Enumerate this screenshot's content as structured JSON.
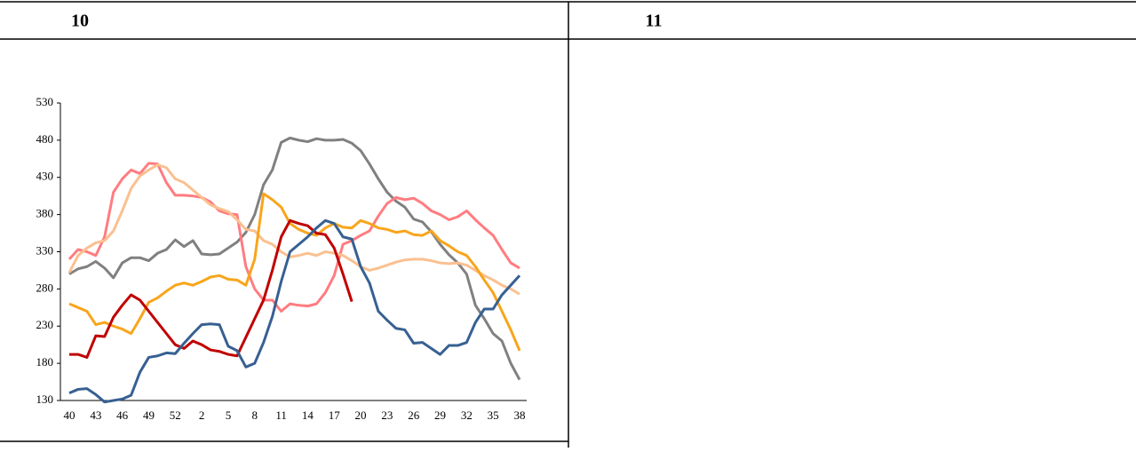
{
  "table": {
    "headers": [
      "10",
      "11"
    ]
  },
  "chart_data": {
    "type": "line",
    "categories": [
      "40",
      null,
      null,
      "43",
      null,
      null,
      "46",
      null,
      null,
      "49",
      null,
      null,
      "52",
      null,
      null,
      "2",
      null,
      null,
      "5",
      null,
      null,
      "8",
      null,
      null,
      "11",
      null,
      null,
      "14",
      null,
      null,
      "17",
      null,
      null,
      "20",
      null,
      null,
      "23",
      null,
      null,
      "26",
      null,
      null,
      "29",
      null,
      null,
      "32",
      null,
      null,
      "35",
      null,
      null,
      "38"
    ],
    "ylim": [
      130,
      530
    ],
    "yticks": [
      130,
      180,
      230,
      280,
      330,
      380,
      430,
      480,
      530
    ],
    "series": [
      {
        "color": "#808080",
        "values": [
          300,
          307,
          310,
          317,
          308,
          295,
          315,
          322,
          322,
          318,
          328,
          333,
          346,
          337,
          345,
          327,
          326,
          327,
          335,
          343,
          356,
          380,
          420,
          440,
          477,
          483,
          480,
          478,
          482,
          480,
          480,
          481,
          476,
          466,
          448,
          428,
          410,
          398,
          390,
          374,
          370,
          357,
          340,
          326,
          315,
          300,
          258,
          240,
          220,
          210,
          180,
          158
        ]
      },
      {
        "color": "#ff7c80",
        "values": [
          320,
          333,
          330,
          325,
          350,
          410,
          428,
          440,
          435,
          449,
          448,
          423,
          406,
          406,
          405,
          403,
          397,
          385,
          381,
          380,
          310,
          280,
          265,
          265,
          250,
          260,
          258,
          257,
          260,
          275,
          298,
          340,
          345,
          352,
          358,
          378,
          395,
          403,
          400,
          402,
          395,
          385,
          380,
          373,
          377,
          385,
          373,
          362,
          352,
          333,
          315,
          308
        ]
      },
      {
        "color": "#fac090",
        "values": [
          302,
          325,
          335,
          342,
          345,
          358,
          385,
          415,
          432,
          440,
          447,
          443,
          428,
          423,
          413,
          403,
          393,
          388,
          384,
          373,
          360,
          358,
          345,
          340,
          330,
          323,
          325,
          328,
          325,
          330,
          328,
          325,
          318,
          310,
          305,
          308,
          312,
          316,
          319,
          320,
          320,
          318,
          315,
          314,
          315,
          312,
          305,
          298,
          292,
          285,
          280,
          273
        ]
      },
      {
        "color": "#f8a51c",
        "values": [
          260,
          255,
          250,
          232,
          235,
          230,
          226,
          220,
          240,
          262,
          268,
          277,
          285,
          288,
          285,
          290,
          296,
          298,
          293,
          292,
          285,
          320,
          408,
          400,
          390,
          368,
          360,
          355,
          352,
          362,
          368,
          363,
          362,
          372,
          368,
          362,
          360,
          356,
          358,
          353,
          352,
          358,
          345,
          338,
          330,
          325,
          310,
          292,
          275,
          250,
          225,
          197
        ]
      },
      {
        "color": "#c00000",
        "values": [
          192,
          192,
          188,
          217,
          216,
          242,
          258,
          272,
          265,
          250,
          235,
          220,
          205,
          200,
          210,
          205,
          198,
          196,
          192,
          190,
          215,
          240,
          265,
          305,
          350,
          372,
          368,
          365,
          355,
          353,
          335,
          300,
          263,
          null,
          null,
          null,
          null,
          null,
          null,
          null,
          null,
          null,
          null,
          null,
          null,
          null,
          null,
          null,
          null,
          null,
          null,
          null
        ]
      },
      {
        "color": "#376092",
        "values": [
          140,
          145,
          146,
          138,
          128,
          130,
          132,
          137,
          168,
          188,
          190,
          194,
          193,
          207,
          220,
          232,
          233,
          232,
          203,
          197,
          175,
          180,
          208,
          243,
          290,
          330,
          340,
          350,
          362,
          372,
          368,
          350,
          347,
          310,
          288,
          250,
          238,
          227,
          225,
          207,
          208,
          200,
          192,
          204,
          204,
          208,
          235,
          253,
          253,
          272,
          285,
          298
        ]
      }
    ]
  }
}
